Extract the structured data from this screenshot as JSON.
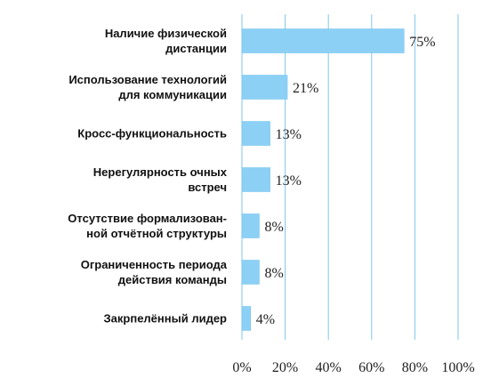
{
  "chart_data": {
    "type": "bar",
    "orientation": "horizontal",
    "categories": [
      [
        "Наличие физической",
        "дистанции"
      ],
      [
        "Использование технологий",
        "для коммуникации"
      ],
      [
        "Кросс-функциональность"
      ],
      [
        "Нерегулярность очных",
        "встреч"
      ],
      [
        "Отсутствие формализован-",
        "ной отчётной структуры"
      ],
      [
        "Ограниченность периода",
        "действия команды"
      ],
      [
        "Закрпелённый лидер"
      ]
    ],
    "values": [
      75,
      21,
      13,
      13,
      8,
      8,
      4
    ],
    "value_labels": [
      "75%",
      "21%",
      "13%",
      "13%",
      "8%",
      "8%",
      "4%"
    ],
    "xticks": [
      "0%",
      "20%",
      "40%",
      "60%",
      "80%",
      "100%"
    ],
    "xlim": [
      0,
      100
    ],
    "grid": true,
    "title": "",
    "xlabel": "",
    "ylabel": "",
    "colors": {
      "bar": "#8dd0f5",
      "bar_edge": "#6cc0ee",
      "grid": "#7ec7ef",
      "text": "#111111"
    }
  }
}
